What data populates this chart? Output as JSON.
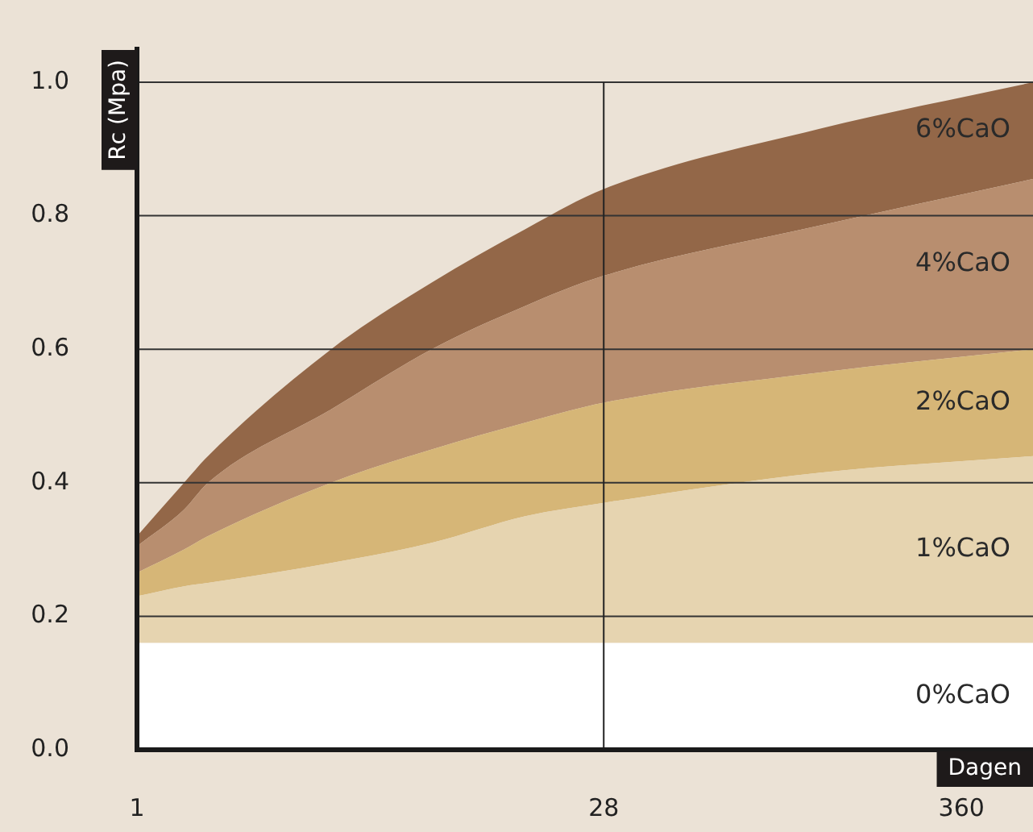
{
  "chart_data": {
    "type": "area",
    "xlabel": "Dagen",
    "ylabel": "Rc (Mpa)",
    "x": [
      1,
      1.4,
      1.66,
      4,
      8.2,
      16,
      28,
      130,
      600
    ],
    "log": "x",
    "xlim": [
      1,
      600
    ],
    "xticks": [
      1,
      28,
      360
    ],
    "ylim": [
      0,
      1
    ],
    "yticks": [
      {
        "value": 0,
        "label": "0.0"
      },
      0.2,
      0.4,
      0.6,
      0.8,
      {
        "value": 1,
        "label": "1.0"
      }
    ],
    "grid": "y",
    "ref_lines": [
      {
        "axis": "x",
        "value": 28
      }
    ],
    "series": [
      {
        "name": "0%CaO",
        "color": "#ffffff",
        "values": [
          0.16,
          0.16,
          0.16,
          0.16,
          0.16,
          0.16,
          0.16,
          0.16,
          0.16
        ]
      },
      {
        "name": "1%CaO",
        "color": "#e6d4b0",
        "values": [
          0.23,
          0.245,
          0.25,
          0.28,
          0.31,
          0.35,
          0.37,
          0.415,
          0.44
        ]
      },
      {
        "name": "2%CaO",
        "color": "#d6b677",
        "values": [
          0.265,
          0.3,
          0.32,
          0.4,
          0.45,
          0.49,
          0.52,
          0.565,
          0.6
        ]
      },
      {
        "name": "4%CaO",
        "color": "#b88e6f",
        "values": [
          0.305,
          0.36,
          0.4,
          0.51,
          0.6,
          0.665,
          0.71,
          0.785,
          0.855
        ]
      },
      {
        "name": "6%CaO",
        "color": "#936748",
        "values": [
          0.32,
          0.4,
          0.44,
          0.6,
          0.7,
          0.78,
          0.84,
          0.93,
          1.0
        ]
      }
    ]
  }
}
